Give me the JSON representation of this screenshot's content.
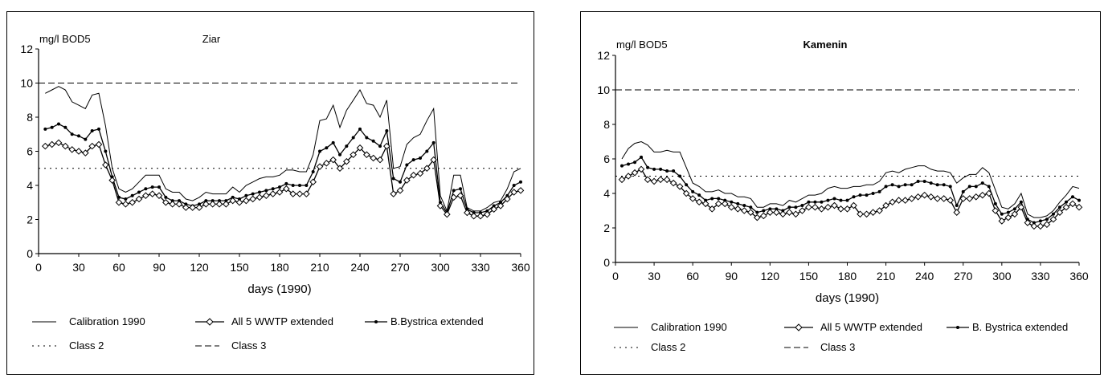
{
  "chart_data": [
    {
      "type": "line",
      "title": "Ziar",
      "ylabel": "mg/l BOD5",
      "xlabel": "days (1990)",
      "xlim": [
        0,
        360
      ],
      "ylim": [
        0,
        12
      ],
      "xticks": [
        "0",
        "30",
        "60",
        "90",
        "120",
        "150",
        "180",
        "210",
        "240",
        "270",
        "300",
        "330",
        "360"
      ],
      "yticks": [
        "0",
        "2",
        "4",
        "6",
        "8",
        "10",
        "12"
      ],
      "grid": false,
      "legend_position": "bottom",
      "legend": {
        "calibration": "Calibration 1990",
        "all5": "All 5 WWTP extended",
        "bbystrica": "B.Bystrica extended",
        "class2": "Class 2",
        "class3": "Class 3"
      },
      "x": [
        5,
        10,
        15,
        20,
        25,
        30,
        35,
        40,
        45,
        50,
        55,
        60,
        65,
        70,
        75,
        80,
        85,
        90,
        95,
        100,
        105,
        110,
        115,
        120,
        125,
        130,
        135,
        140,
        145,
        150,
        155,
        160,
        165,
        170,
        175,
        180,
        185,
        190,
        195,
        200,
        205,
        210,
        215,
        220,
        225,
        230,
        235,
        240,
        245,
        250,
        255,
        260,
        265,
        270,
        275,
        280,
        285,
        290,
        295,
        300,
        305,
        310,
        315,
        320,
        325,
        330,
        335,
        340,
        345,
        350,
        355,
        360
      ],
      "series": [
        {
          "name": "Calibration 1990",
          "style": "solid",
          "values": [
            9.4,
            9.6,
            9.8,
            9.6,
            8.9,
            8.7,
            8.5,
            9.3,
            9.4,
            7.5,
            5.0,
            3.8,
            3.6,
            3.8,
            4.2,
            4.6,
            4.6,
            4.6,
            3.8,
            3.6,
            3.6,
            3.2,
            3.1,
            3.3,
            3.6,
            3.5,
            3.5,
            3.5,
            3.9,
            3.6,
            4.0,
            4.2,
            4.4,
            4.5,
            4.5,
            4.6,
            4.9,
            4.9,
            4.8,
            4.8,
            5.8,
            7.8,
            7.9,
            8.7,
            7.4,
            8.4,
            9.0,
            9.6,
            8.8,
            8.7,
            8.0,
            9.0,
            5.0,
            5.1,
            6.4,
            6.8,
            7.0,
            7.8,
            8.5,
            3.4,
            2.5,
            4.6,
            4.6,
            2.7,
            2.5,
            2.5,
            2.7,
            3.0,
            3.1,
            3.8,
            4.8,
            5.0
          ]
        },
        {
          "name": "B.Bystrica extended",
          "style": "dots",
          "values": [
            7.3,
            7.4,
            7.6,
            7.4,
            7.0,
            6.9,
            6.7,
            7.2,
            7.3,
            6.0,
            4.5,
            3.3,
            3.2,
            3.4,
            3.6,
            3.8,
            3.9,
            3.9,
            3.3,
            3.1,
            3.1,
            2.9,
            2.8,
            2.9,
            3.1,
            3.1,
            3.1,
            3.1,
            3.3,
            3.2,
            3.4,
            3.5,
            3.6,
            3.7,
            3.8,
            3.9,
            4.1,
            4.0,
            4.0,
            4.0,
            4.8,
            6.0,
            6.2,
            6.5,
            5.8,
            6.3,
            6.8,
            7.3,
            6.8,
            6.6,
            6.3,
            7.2,
            4.4,
            4.2,
            5.2,
            5.5,
            5.6,
            6.0,
            6.5,
            3.0,
            2.4,
            3.7,
            3.8,
            2.6,
            2.4,
            2.4,
            2.5,
            2.8,
            3.0,
            3.4,
            4.0,
            4.2
          ]
        },
        {
          "name": "All 5 WWTP extended",
          "style": "diamonds",
          "values": [
            6.3,
            6.4,
            6.5,
            6.3,
            6.1,
            6.0,
            5.9,
            6.3,
            6.4,
            5.2,
            4.3,
            3.0,
            2.9,
            3.0,
            3.2,
            3.4,
            3.5,
            3.4,
            3.0,
            2.9,
            2.9,
            2.7,
            2.7,
            2.7,
            2.9,
            2.9,
            2.9,
            2.9,
            3.1,
            3.0,
            3.1,
            3.2,
            3.3,
            3.4,
            3.5,
            3.6,
            3.8,
            3.5,
            3.5,
            3.5,
            4.2,
            5.1,
            5.3,
            5.5,
            5.0,
            5.4,
            5.8,
            6.2,
            5.8,
            5.6,
            5.5,
            6.3,
            3.5,
            3.7,
            4.3,
            4.6,
            4.7,
            5.0,
            5.5,
            2.8,
            2.3,
            3.3,
            3.4,
            2.4,
            2.2,
            2.2,
            2.3,
            2.6,
            2.8,
            3.2,
            3.6,
            3.7
          ]
        }
      ],
      "reference_lines": [
        {
          "name": "Class 2",
          "style": "dotted",
          "y": 5
        },
        {
          "name": "Class 3",
          "style": "dashed",
          "y": 10
        }
      ]
    },
    {
      "type": "line",
      "title": "Kamenin",
      "ylabel": "mg/l BOD5",
      "xlabel": "days (1990)",
      "xlim": [
        0,
        360
      ],
      "ylim": [
        0,
        12
      ],
      "xticks": [
        "0",
        "30",
        "60",
        "90",
        "120",
        "150",
        "180",
        "210",
        "240",
        "270",
        "300",
        "330",
        "360"
      ],
      "yticks": [
        "0",
        "2",
        "4",
        "6",
        "8",
        "10",
        "12"
      ],
      "grid": false,
      "legend_position": "bottom",
      "legend": {
        "calibration": "Calibration 1990",
        "all5": "All 5 WWTP extended",
        "bbystrica": "B. Bystrica extended",
        "class2": "Class 2",
        "class3": "Class 3"
      },
      "x": [
        5,
        10,
        15,
        20,
        25,
        30,
        35,
        40,
        45,
        50,
        55,
        60,
        65,
        70,
        75,
        80,
        85,
        90,
        95,
        100,
        105,
        110,
        115,
        120,
        125,
        130,
        135,
        140,
        145,
        150,
        155,
        160,
        165,
        170,
        175,
        180,
        185,
        190,
        195,
        200,
        205,
        210,
        215,
        220,
        225,
        230,
        235,
        240,
        245,
        250,
        255,
        260,
        265,
        270,
        275,
        280,
        285,
        290,
        295,
        300,
        305,
        310,
        315,
        320,
        325,
        330,
        335,
        340,
        345,
        350,
        355,
        360
      ],
      "series": [
        {
          "name": "Calibration 1990",
          "style": "solid",
          "values": [
            6.0,
            6.6,
            6.9,
            7.0,
            6.8,
            6.4,
            6.4,
            6.5,
            6.4,
            6.4,
            5.5,
            4.6,
            4.4,
            4.1,
            4.1,
            4.2,
            4.0,
            4.0,
            3.8,
            3.8,
            3.7,
            3.2,
            3.2,
            3.4,
            3.4,
            3.3,
            3.6,
            3.5,
            3.7,
            3.9,
            3.9,
            4.0,
            4.3,
            4.4,
            4.3,
            4.3,
            4.4,
            4.4,
            4.5,
            4.5,
            4.7,
            5.2,
            5.3,
            5.2,
            5.4,
            5.5,
            5.6,
            5.6,
            5.4,
            5.3,
            5.3,
            5.2,
            4.6,
            4.9,
            5.1,
            5.1,
            5.5,
            5.2,
            4.2,
            3.2,
            3.1,
            3.4,
            4.0,
            2.8,
            2.6,
            2.6,
            2.7,
            3.0,
            3.5,
            3.9,
            4.4,
            4.3
          ]
        },
        {
          "name": "B. Bystrica extended",
          "style": "dots",
          "values": [
            5.6,
            5.7,
            5.8,
            6.1,
            5.5,
            5.4,
            5.4,
            5.3,
            5.3,
            5.0,
            4.5,
            4.1,
            3.9,
            3.6,
            3.7,
            3.7,
            3.6,
            3.5,
            3.4,
            3.3,
            3.2,
            2.9,
            3.0,
            3.1,
            3.1,
            3.0,
            3.2,
            3.2,
            3.3,
            3.5,
            3.5,
            3.5,
            3.6,
            3.7,
            3.6,
            3.6,
            3.8,
            3.9,
            3.9,
            4.0,
            4.1,
            4.4,
            4.5,
            4.4,
            4.5,
            4.5,
            4.7,
            4.7,
            4.6,
            4.5,
            4.5,
            4.4,
            3.3,
            4.1,
            4.4,
            4.4,
            4.6,
            4.4,
            3.4,
            2.8,
            2.9,
            3.1,
            3.5,
            2.5,
            2.3,
            2.4,
            2.5,
            2.8,
            3.2,
            3.5,
            3.8,
            3.6
          ]
        },
        {
          "name": "All 5 WWTP extended",
          "style": "diamonds",
          "values": [
            4.8,
            5.0,
            5.2,
            5.4,
            4.8,
            4.7,
            4.8,
            4.8,
            4.6,
            4.4,
            4.0,
            3.7,
            3.5,
            3.4,
            3.1,
            3.4,
            3.4,
            3.2,
            3.1,
            3.0,
            2.9,
            2.6,
            2.7,
            2.9,
            2.9,
            2.8,
            2.9,
            2.8,
            3.0,
            3.2,
            3.2,
            3.1,
            3.2,
            3.3,
            3.1,
            3.1,
            3.3,
            2.8,
            2.8,
            2.9,
            3.0,
            3.3,
            3.5,
            3.6,
            3.6,
            3.7,
            3.8,
            3.9,
            3.8,
            3.7,
            3.7,
            3.6,
            2.9,
            3.7,
            3.7,
            3.8,
            3.9,
            4.0,
            3.0,
            2.4,
            2.6,
            2.8,
            3.2,
            2.3,
            2.1,
            2.1,
            2.2,
            2.5,
            2.9,
            3.2,
            3.4,
            3.2
          ]
        }
      ],
      "reference_lines": [
        {
          "name": "Class 2",
          "style": "dotted",
          "y": 5
        },
        {
          "name": "Class 3",
          "style": "dashed",
          "y": 10
        }
      ]
    }
  ]
}
